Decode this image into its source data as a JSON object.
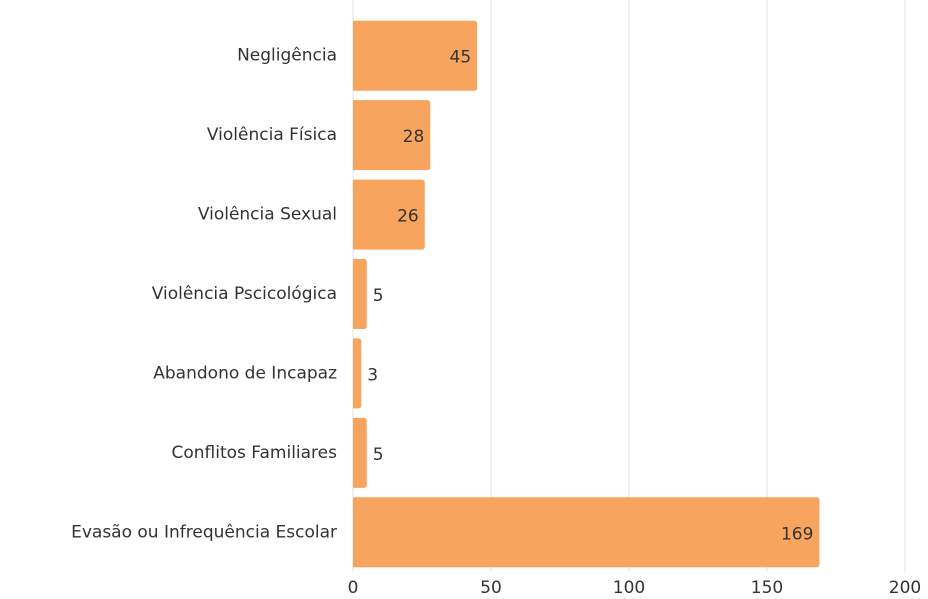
{
  "chart_data": {
    "type": "barh",
    "categories": [
      "Negligência",
      "Violência Física",
      "Violência Sexual",
      "Violência Pscicológica",
      "Abandono de Incapaz",
      "Conflitos Familiares",
      "Evasão ou Infrequência Escolar"
    ],
    "values": [
      45,
      28,
      26,
      5,
      3,
      5,
      169
    ],
    "color": "#f7a55e",
    "xlim": [
      0,
      200
    ],
    "xticks": [
      0,
      50,
      100,
      150,
      200
    ],
    "grid": true
  }
}
